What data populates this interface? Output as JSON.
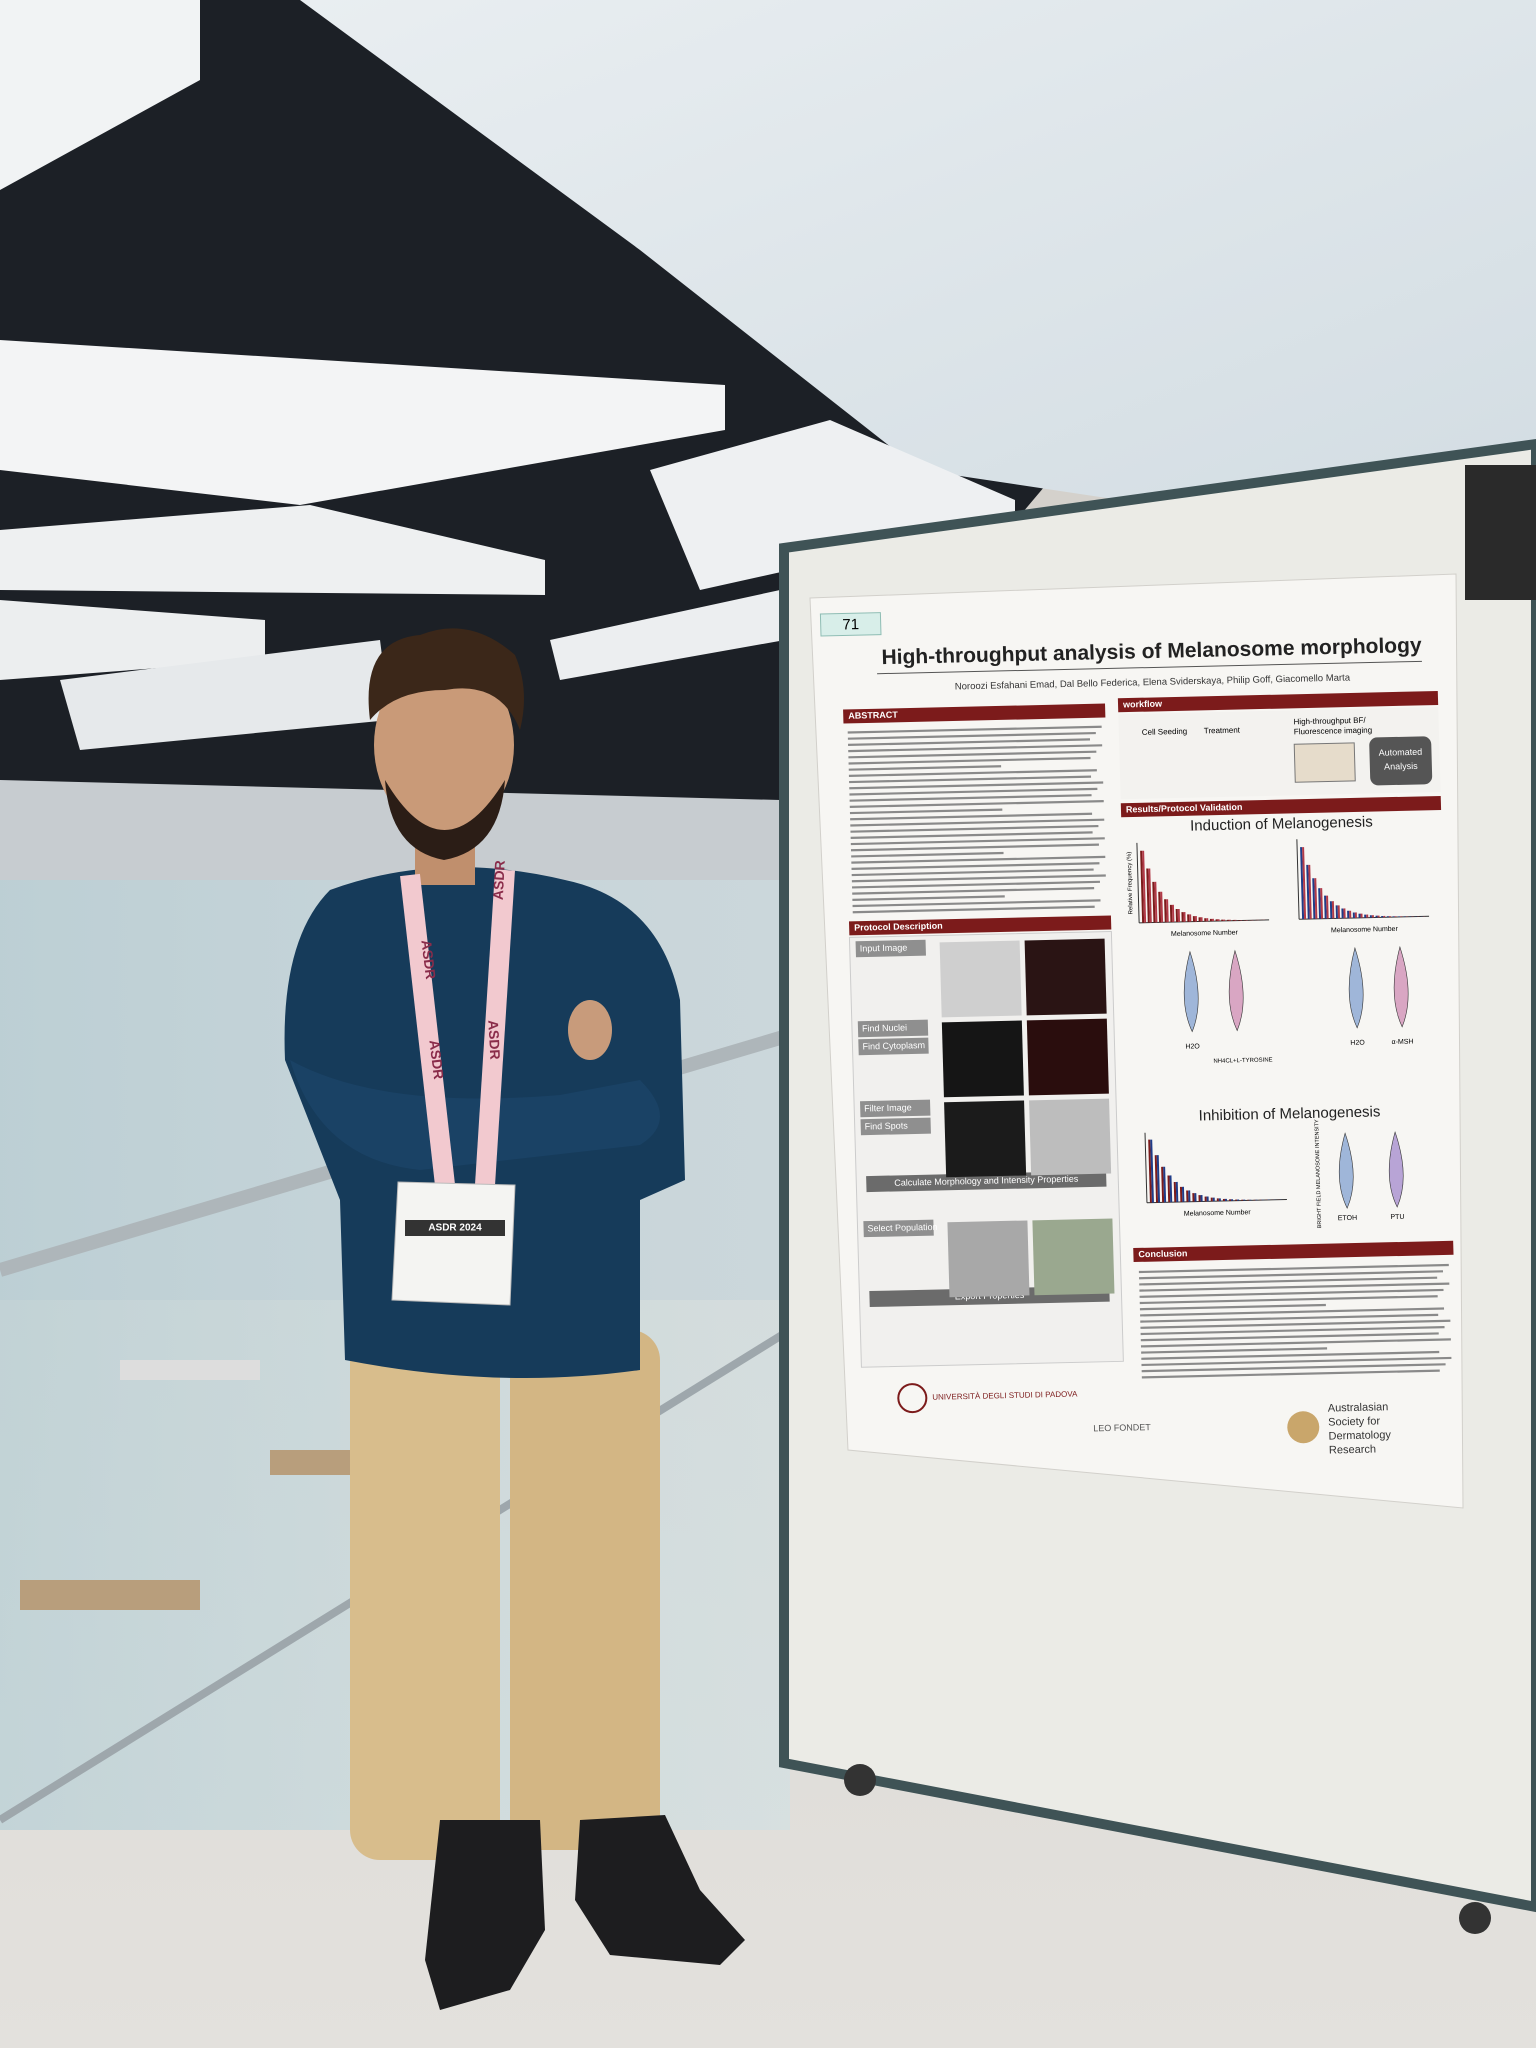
{
  "poster": {
    "number": "71",
    "title": "High-throughput analysis of Melanosome morphology",
    "authors": "Noroozi Esfahani Emad, Dal Bello Federica, Elena Sviderskaya, Philip Goff, Giacomello Marta",
    "sections": {
      "abstract": "ABSTRACT",
      "workflow": "workflow",
      "results": "Results/Protocol Validation",
      "induction": "Induction of Melanogenesis",
      "inhibition": "Inhibition of Melanogenesis",
      "protocol": "Protocol Description",
      "conclusion": "Conclusion"
    },
    "workflow_steps": [
      "Cell Seeding",
      "Treatment",
      "High-throughput BF/",
      "Fluorescence imaging",
      "Automated",
      "Analysis"
    ],
    "protocol_steps": [
      "Input Image",
      "Find Nuclei",
      "Find Cytoplasm",
      "Filter Image",
      "Find Spots",
      "Calculate Morphology and Intensity Properties",
      "Select Population",
      "Export Properties"
    ],
    "axis_labels": {
      "x": "Melanosome Number",
      "y": "Relative Frequency (%)",
      "intensity": "BRIGHT FIELD MELANOSOME INTENSITY"
    },
    "groups": {
      "induction_a": "H2O",
      "induction_b": "NH4CL+L-TYROSINE",
      "msh": "α-MSH",
      "inhibition_a": "ETOH",
      "inhibition_b": "PTU"
    },
    "logos": {
      "padova": "UNIVERSITÀ DEGLI STUDI DI PADOVA",
      "leo": "LEO FONDET",
      "society": [
        "Australasian",
        "Society for",
        "Dermatology",
        "Research"
      ]
    }
  },
  "badge": {
    "lanyard": "ASDR",
    "event": "ASDR 2024"
  }
}
